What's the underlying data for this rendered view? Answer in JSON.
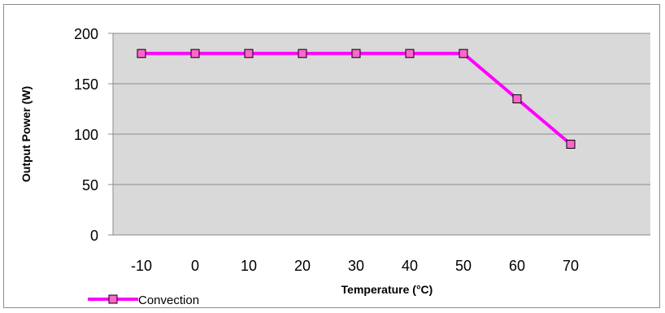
{
  "chart_data": {
    "type": "line",
    "x": [
      -10,
      0,
      10,
      20,
      30,
      40,
      50,
      60,
      70
    ],
    "series": [
      {
        "name": "Convection",
        "values": [
          180,
          180,
          180,
          180,
          180,
          180,
          180,
          135,
          90
        ]
      }
    ],
    "xlabel": "Temperature (°C)",
    "ylabel": "Output Power (W)",
    "ylim": [
      0,
      200
    ],
    "yticks": [
      "0",
      "50",
      "100",
      "150",
      "200"
    ],
    "xticks": [
      "-10",
      "0",
      "10",
      "20",
      "30",
      "40",
      "50",
      "60",
      "70"
    ],
    "grid": true,
    "legend_position": "bottom-left",
    "colors": {
      "series": "#ff00ff",
      "marker_fill": "#ff66cc",
      "plot_background": "#d9d9d9",
      "gridline": "#8c8c8c"
    },
    "marker": "square"
  }
}
